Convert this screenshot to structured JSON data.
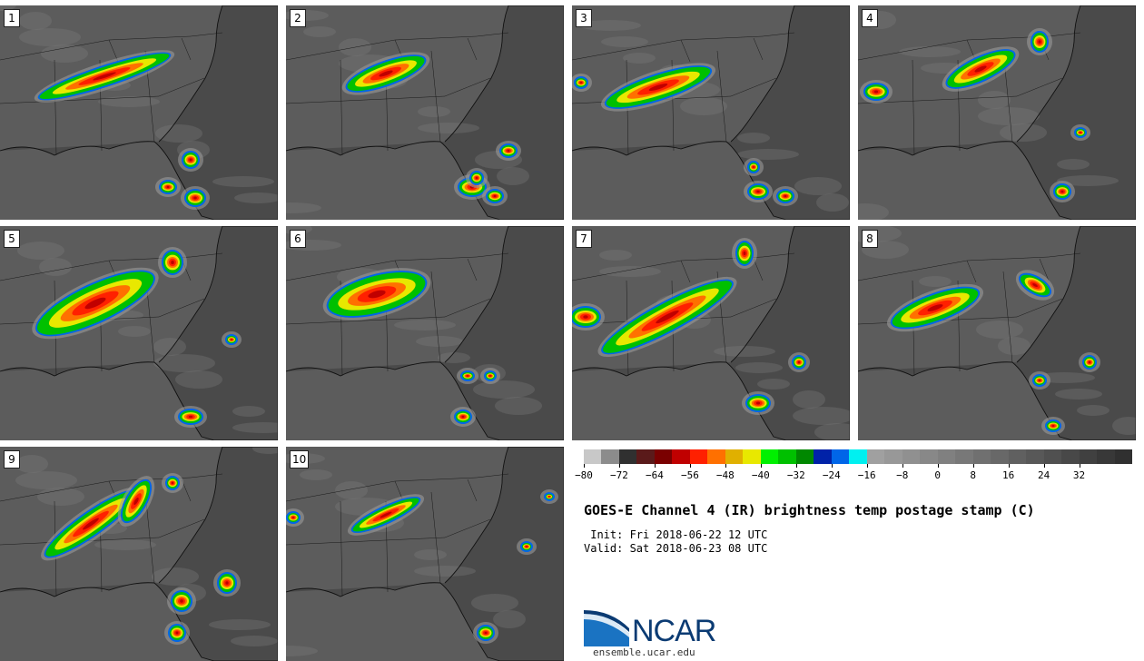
{
  "panels": [
    {
      "label": "1"
    },
    {
      "label": "2"
    },
    {
      "label": "3"
    },
    {
      "label": "4"
    },
    {
      "label": "5"
    },
    {
      "label": "6"
    },
    {
      "label": "7"
    },
    {
      "label": "8"
    },
    {
      "label": "9"
    },
    {
      "label": "10"
    }
  ],
  "colorbar": {
    "colors": [
      "#c8c8c8",
      "#8c8c8c",
      "#303030",
      "#5a1a1a",
      "#7a0000",
      "#c00000",
      "#ff2000",
      "#ff7000",
      "#e0b000",
      "#e8e800",
      "#00f000",
      "#00c000",
      "#008800",
      "#0022a8",
      "#0066e8",
      "#00f0f0",
      "#a0a0a0",
      "#989898",
      "#909090",
      "#888888",
      "#808080",
      "#787878",
      "#707070",
      "#686868",
      "#606060",
      "#585858",
      "#505050",
      "#484848",
      "#404040",
      "#383838",
      "#303030"
    ],
    "ticks": [
      "−80",
      "−72",
      "−64",
      "−56",
      "−48",
      "−40",
      "−32",
      "−24",
      "−16",
      "−8",
      "0",
      "8",
      "16",
      "24",
      "32"
    ]
  },
  "title": "GOES-E Channel 4 (IR) brightness temp postage stamp (C)",
  "init": " Init: Fri 2018-06-22 12 UTC",
  "valid": "Valid: Sat 2018-06-23 08 UTC",
  "logo": {
    "name": "NCAR",
    "url": "ensemble.ucar.edu"
  }
}
